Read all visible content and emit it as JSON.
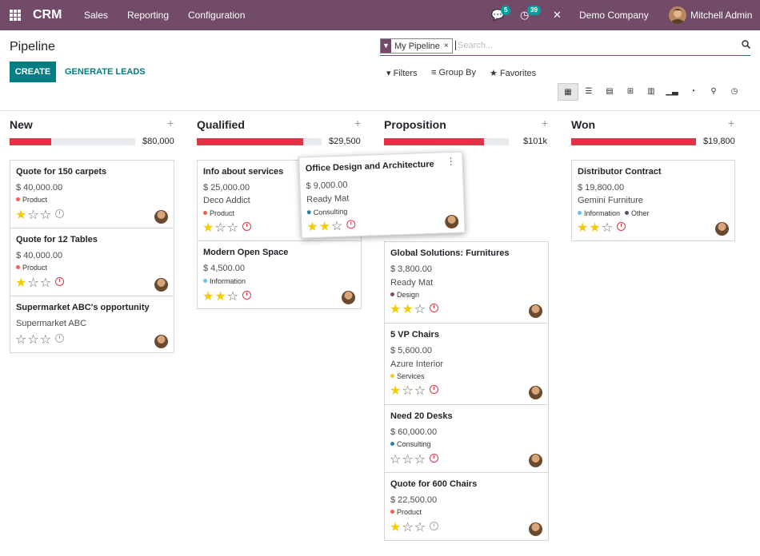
{
  "navbar": {
    "app_name": "CRM",
    "menu": [
      "Sales",
      "Reporting",
      "Configuration"
    ],
    "chat_count": "5",
    "activity_count": "39",
    "company": "Demo Company",
    "user": "Mitchell Admin"
  },
  "control": {
    "title": "Pipeline",
    "create": "CREATE",
    "generate": "GENERATE LEADS",
    "facet": "My Pipeline",
    "facet_close": "×",
    "search_placeholder": "Search...",
    "filters": "Filters",
    "group_by": "Group By",
    "favorites": "Favorites"
  },
  "columns": [
    {
      "title": "New",
      "total": "$80,000",
      "progress": 0.33
    },
    {
      "title": "Qualified",
      "total": "$29,500",
      "progress": 0.85
    },
    {
      "title": "Proposition",
      "total": "$101k",
      "progress": 0.8
    },
    {
      "title": "Won",
      "total": "$19,800",
      "progress": 1.0
    }
  ],
  "cards": {
    "new": [
      {
        "name": "Quote for 150 carpets",
        "amount": "$ 40,000.00",
        "tags": [
          "Product"
        ],
        "stars": 1
      },
      {
        "name": "Quote for 12 Tables",
        "amount": "$ 40,000.00",
        "tags": [
          "Product"
        ],
        "stars": 1
      },
      {
        "name": "Supermarket ABC's opportunity",
        "partner": "Supermarket ABC",
        "stars": 0
      }
    ],
    "qualified": [
      {
        "name": "Info about services",
        "amount": "$ 25,000.00",
        "partner": "Deco Addict",
        "tags": [
          "Product"
        ],
        "stars": 1
      },
      {
        "name": "Modern Open Space",
        "amount": "$ 4,500.00",
        "tags": [
          "Information"
        ],
        "stars": 2
      }
    ],
    "dragged": {
      "name": "Office Design and Architecture",
      "amount": "$ 9,000.00",
      "partner": "Ready Mat",
      "tags": [
        "Consulting"
      ],
      "stars": 2
    },
    "proposition": [
      {
        "name": "Global Solutions: Furnitures",
        "amount": "$ 3,800.00",
        "partner": "Ready Mat",
        "tags": [
          "Design"
        ],
        "stars": 2
      },
      {
        "name": "5 VP Chairs",
        "amount": "$ 5,600.00",
        "partner": "Azure Interior",
        "tags": [
          "Services"
        ],
        "stars": 1
      },
      {
        "name": "Need 20 Desks",
        "amount": "$ 60,000.00",
        "tags": [
          "Consulting"
        ],
        "stars": 0
      },
      {
        "name": "Quote for 600 Chairs",
        "amount": "$ 22,500.00",
        "tags": [
          "Product"
        ],
        "stars": 1
      }
    ],
    "won": [
      {
        "name": "Distributor Contract",
        "amount": "$ 19,800.00",
        "partner": "Gemini Furniture",
        "tags": [
          "Information",
          "Other"
        ],
        "stars": 2
      }
    ]
  },
  "tag_colors": {
    "Product": "#F06050",
    "Information": "#6CC1ED",
    "Consulting": "#2C8397",
    "Design": "#814968",
    "Services": "#F7CD1F",
    "Other": "#475577"
  },
  "brand_color": "#714B67",
  "accent_color": "#017E84"
}
